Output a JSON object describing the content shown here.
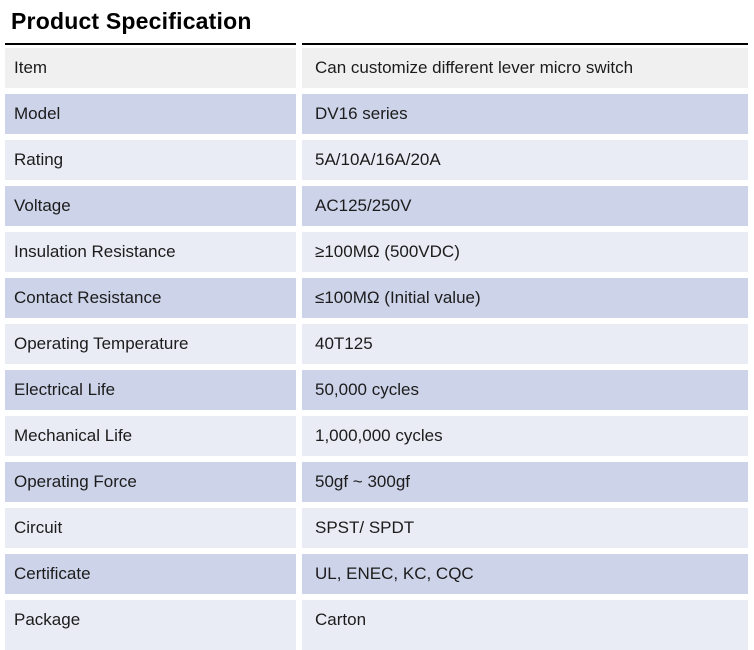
{
  "title": "Product Specification",
  "colors": {
    "title_text": "#000000",
    "body_text": "#1c1c1c",
    "title_rule": "#000000",
    "row_header_bg": "#f0f0f0",
    "row_accent_bg": "#cdd3e9",
    "row_base_bg": "#e9ebf5",
    "gutter": "#ffffff"
  },
  "table": {
    "rows": [
      {
        "label": "Item",
        "value": "Can customize different lever micro switch"
      },
      {
        "label": "Model",
        "value": "DV16 series"
      },
      {
        "label": "Rating",
        "value": "5A/10A/16A/20A"
      },
      {
        "label": "Voltage",
        "value": "AC125/250V"
      },
      {
        "label": "Insulation Resistance",
        "value": "≥100MΩ (500VDC)"
      },
      {
        "label": "Contact Resistance",
        "value": "≤100MΩ (Initial value)"
      },
      {
        "label": "Operating Temperature",
        "value": "40T125"
      },
      {
        "label": "Electrical Life",
        "value": "50,000 cycles"
      },
      {
        "label": "Mechanical Life",
        "value": "1,000,000 cycles"
      },
      {
        "label": "Operating Force",
        "value": "50gf ~ 300gf"
      },
      {
        "label": "Circuit",
        "value": "SPST/ SPDT"
      },
      {
        "label": "Certificate",
        "value": "UL, ENEC, KC, CQC"
      },
      {
        "label": "Package",
        "value": "Carton"
      }
    ]
  }
}
